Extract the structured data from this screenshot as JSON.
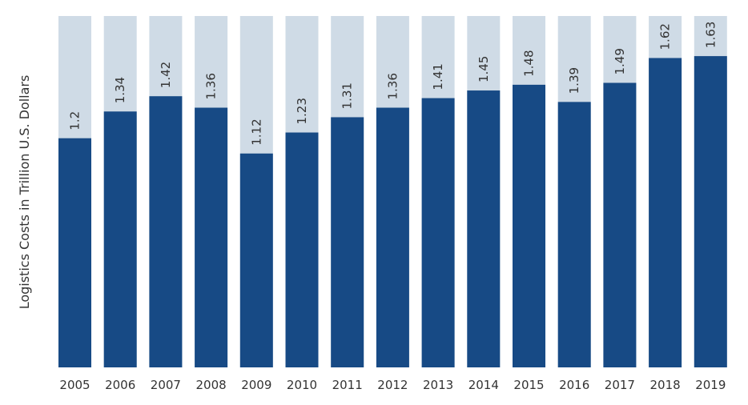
{
  "chart_data": {
    "type": "bar",
    "title": "",
    "xlabel": "",
    "ylabel": "Logistics Costs in Trillion U.S. Dollars",
    "categories": [
      "2005",
      "2006",
      "2007",
      "2008",
      "2009",
      "2010",
      "2011",
      "2012",
      "2013",
      "2014",
      "2015",
      "2016",
      "2017",
      "2018",
      "2019"
    ],
    "series": [
      {
        "values": [
          1.2,
          1.34,
          1.42,
          1.36,
          1.12,
          1.23,
          1.31,
          1.36,
          1.41,
          1.45,
          1.48,
          1.39,
          1.49,
          1.62,
          1.63
        ],
        "value_labels": [
          "1.2",
          "1.34",
          "1.42",
          "1.36",
          "1.12",
          "1.23",
          "1.31",
          "1.36",
          "1.41",
          "1.45",
          "1.48",
          "1.39",
          "1.49",
          "1.62",
          "1.63"
        ]
      }
    ],
    "ylim": [
      0,
      1.84
    ],
    "grid": false,
    "legend": "none",
    "colors": {
      "bar": "#174a85",
      "background_column": "#cfdbe6",
      "text": "#333333"
    }
  }
}
